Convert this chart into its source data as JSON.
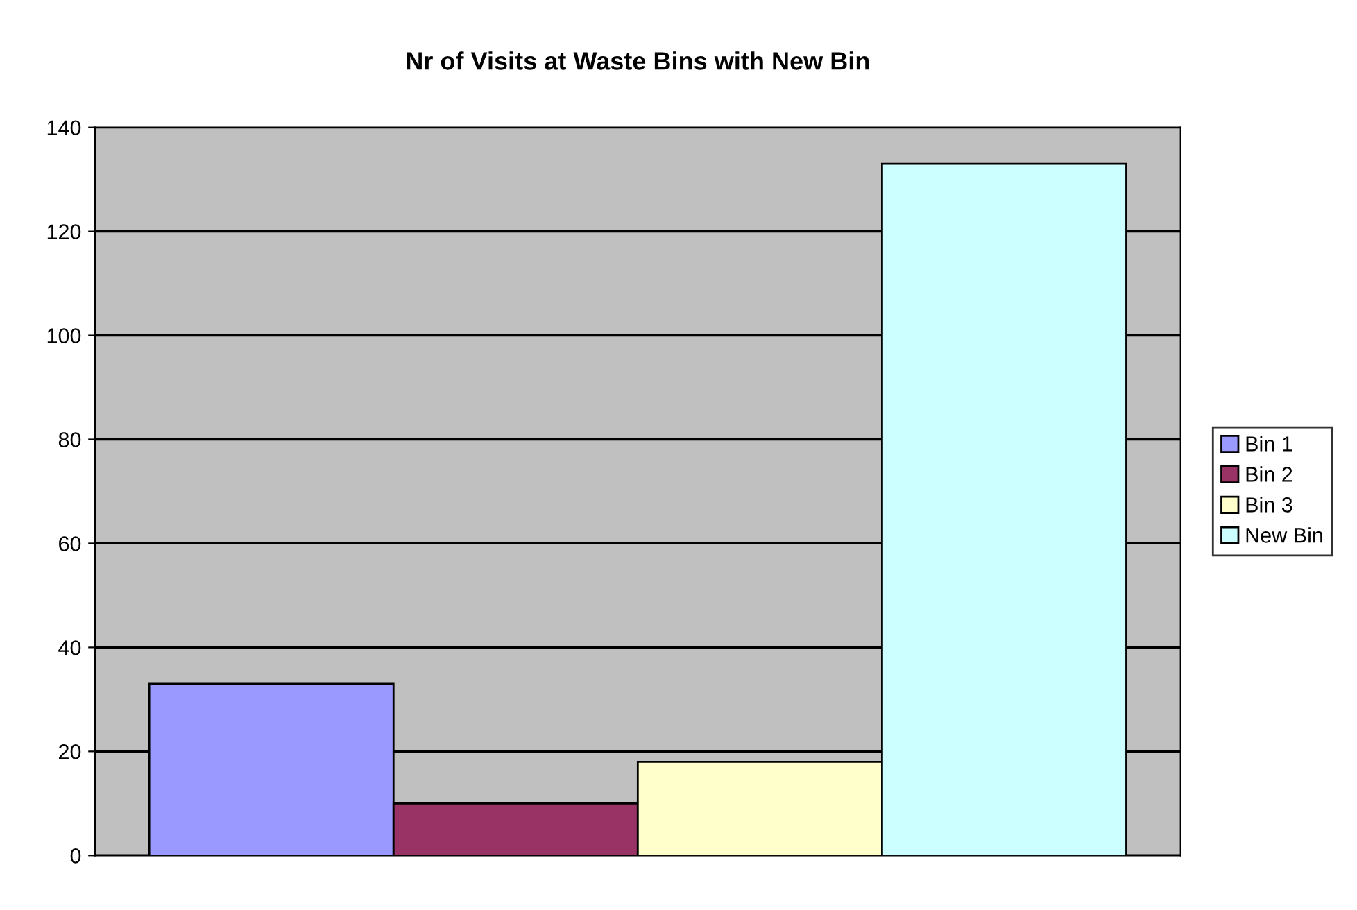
{
  "chart_data": {
    "type": "bar",
    "title": "Nr of Visits at Waste Bins with New Bin",
    "categories": [
      null
    ],
    "series": [
      {
        "name": "Bin 1",
        "color": "#9999ff",
        "values": [
          33
        ]
      },
      {
        "name": "Bin 2",
        "color": "#993366",
        "values": [
          10
        ]
      },
      {
        "name": "Bin 3",
        "color": "#ffffcc",
        "values": [
          18
        ]
      },
      {
        "name": "New Bin",
        "color": "#ccffff",
        "values": [
          133
        ]
      }
    ],
    "ylim": [
      0,
      140
    ],
    "yticks": [
      0,
      20,
      40,
      60,
      80,
      100,
      120,
      140
    ],
    "grid": "y",
    "legend": "right"
  }
}
